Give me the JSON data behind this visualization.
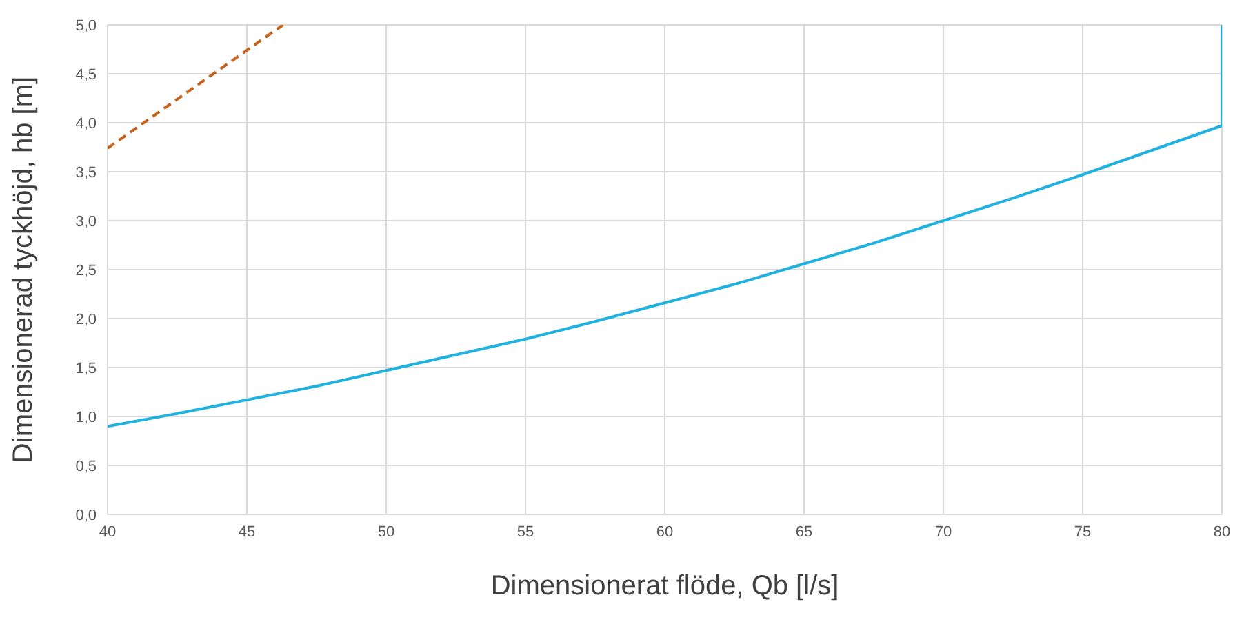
{
  "chart_data": {
    "type": "line",
    "xlabel": "Dimensionerat flöde, Qb [l/s]",
    "ylabel": "Dimensionerad tyckhöjd, hb [m]",
    "series": [
      {
        "color": "#1fb1e0",
        "x": [
          40,
          42.5,
          45,
          47.5,
          50,
          52.5,
          55,
          57.5,
          60,
          62.5,
          65,
          67.5,
          70,
          72.5,
          75,
          77.5,
          80,
          80
        ],
        "values": [
          0.9,
          1.03,
          1.17,
          1.31,
          1.47,
          1.63,
          1.79,
          1.97,
          2.16,
          2.35,
          2.56,
          2.77,
          3.0,
          3.23,
          3.47,
          3.72,
          3.97,
          5.0
        ]
      },
      {
        "color": "#c5621e",
        "line_style": "dashed",
        "x": [
          40,
          43,
          46.3
        ],
        "values": [
          3.74,
          4.34,
          5.0
        ]
      }
    ],
    "xlim": [
      40,
      80
    ],
    "xticks": [
      40,
      45,
      50,
      55,
      60,
      65,
      70,
      75,
      80
    ],
    "ylim": [
      0,
      5
    ],
    "yticks": [
      {
        "value": 0,
        "label": "0,0"
      },
      {
        "value": 0.5,
        "label": "0,5"
      },
      {
        "value": 1,
        "label": "1,0"
      },
      {
        "value": 1.5,
        "label": "1,5"
      },
      {
        "value": 2,
        "label": "2,0"
      },
      {
        "value": 2.5,
        "label": "2,5"
      },
      {
        "value": 3,
        "label": "3,0"
      },
      {
        "value": 3.5,
        "label": "3,5"
      },
      {
        "value": 4,
        "label": "4,0"
      },
      {
        "value": 4.5,
        "label": "4,5"
      },
      {
        "value": 5,
        "label": "5,0"
      }
    ],
    "grid": true,
    "marker": "none"
  }
}
